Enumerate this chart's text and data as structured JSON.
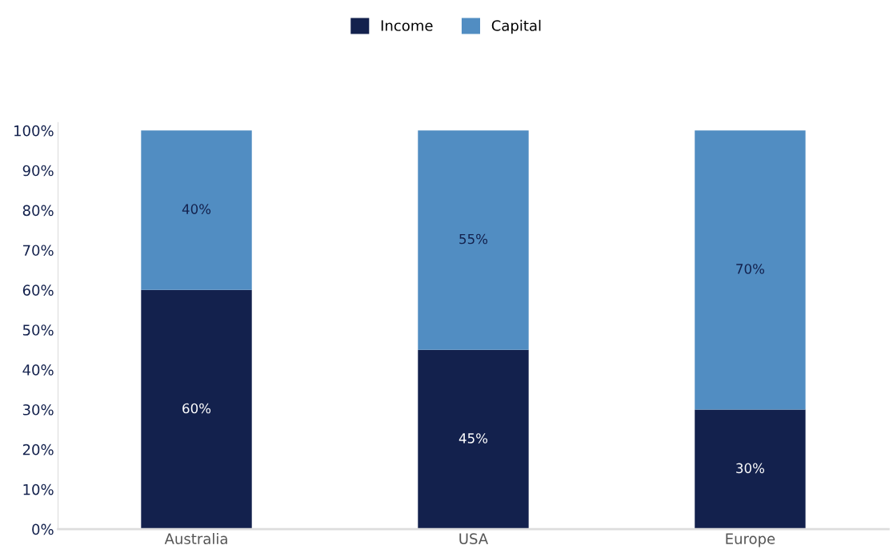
{
  "chart_data": {
    "type": "bar",
    "stacked": true,
    "categories": [
      "Australia",
      "USA",
      "Europe"
    ],
    "series": [
      {
        "name": "Income",
        "color": "#13214d",
        "values": [
          60,
          45,
          30
        ],
        "value_labels": [
          "60%",
          "45%",
          "30%"
        ]
      },
      {
        "name": "Capital",
        "color": "#518dc2",
        "values": [
          40,
          55,
          70
        ],
        "value_labels": [
          "40%",
          "55%",
          "70%"
        ]
      }
    ],
    "ylim": [
      0,
      102
    ],
    "yticks": [
      {
        "value": 0,
        "label": "0%"
      },
      {
        "value": 10,
        "label": "10%"
      },
      {
        "value": 20,
        "label": "20%"
      },
      {
        "value": 30,
        "label": "30%"
      },
      {
        "value": 40,
        "label": "40%"
      },
      {
        "value": 50,
        "label": "50%"
      },
      {
        "value": 60,
        "label": "60%"
      },
      {
        "value": 70,
        "label": "70%"
      },
      {
        "value": 80,
        "label": "80%"
      },
      {
        "value": 90,
        "label": "90%"
      },
      {
        "value": 100,
        "label": "100%"
      }
    ],
    "grid": false,
    "legend": "top"
  }
}
